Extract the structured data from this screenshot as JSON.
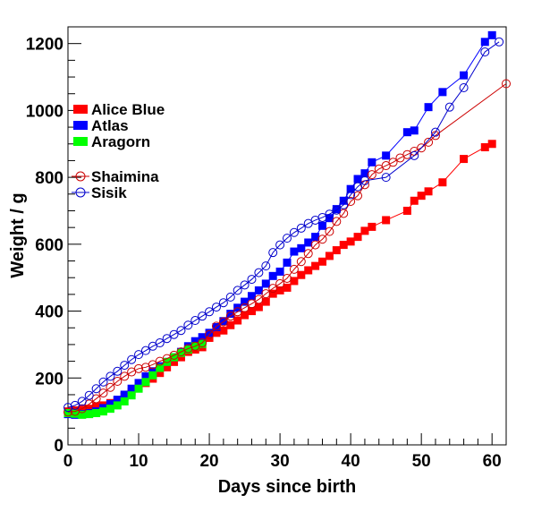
{
  "chart_data": {
    "type": "scatter",
    "xlabel": "Days since birth",
    "ylabel": "Weight / g",
    "xlim": [
      0,
      62
    ],
    "ylim": [
      0,
      1250
    ],
    "xticks": [
      0,
      10,
      20,
      30,
      40,
      50,
      60
    ],
    "yticks": [
      0,
      200,
      400,
      600,
      800,
      1000,
      1200
    ],
    "grid": false,
    "legend_position": "left",
    "series": [
      {
        "name": "Alice Blue",
        "color": "#ff0000",
        "marker": "filled-square",
        "x": [
          0,
          1,
          2,
          3,
          4,
          5,
          6,
          7,
          8,
          9,
          10,
          11,
          12,
          13,
          14,
          15,
          16,
          17,
          18,
          19,
          20,
          21,
          22,
          23,
          24,
          25,
          26,
          27,
          28,
          29,
          30,
          31,
          32,
          33,
          34,
          35,
          36,
          37,
          38,
          39,
          40,
          41,
          42,
          43,
          45,
          48,
          49,
          50,
          51,
          53,
          56,
          59,
          60
        ],
        "y": [
          100,
          103,
          105,
          108,
          115,
          118,
          125,
          132,
          145,
          158,
          172,
          185,
          198,
          215,
          232,
          248,
          262,
          278,
          285,
          292,
          320,
          335,
          342,
          358,
          372,
          388,
          400,
          412,
          428,
          452,
          462,
          470,
          490,
          508,
          522,
          535,
          548,
          565,
          582,
          598,
          608,
          622,
          640,
          652,
          672,
          700,
          730,
          745,
          758,
          785,
          855,
          890,
          900
        ]
      },
      {
        "name": "Atlas",
        "color": "#0000ff",
        "marker": "filled-square",
        "x": [
          0,
          1,
          2,
          3,
          4,
          5,
          6,
          7,
          8,
          9,
          10,
          11,
          12,
          13,
          14,
          15,
          16,
          17,
          18,
          19,
          20,
          21,
          22,
          23,
          24,
          25,
          26,
          27,
          28,
          29,
          30,
          31,
          32,
          33,
          34,
          35,
          36,
          37,
          38,
          39,
          40,
          41,
          42,
          43,
          45,
          48,
          49,
          51,
          53,
          56,
          59,
          60
        ],
        "y": [
          92,
          90,
          92,
          95,
          100,
          110,
          122,
          135,
          150,
          168,
          185,
          205,
          220,
          235,
          248,
          262,
          278,
          295,
          310,
          322,
          335,
          352,
          370,
          392,
          410,
          428,
          445,
          462,
          482,
          505,
          518,
          545,
          578,
          588,
          605,
          622,
          655,
          678,
          705,
          730,
          765,
          795,
          812,
          845,
          865,
          935,
          940,
          1010,
          1055,
          1105,
          1205,
          1225
        ]
      },
      {
        "name": "Aragorn",
        "color": "#00ff00",
        "marker": "filled-square",
        "x": [
          0,
          1,
          2,
          3,
          4,
          5,
          6,
          7,
          8,
          9,
          10,
          11,
          12,
          13,
          14,
          15,
          16,
          17,
          18,
          19
        ],
        "y": [
          95,
          93,
          90,
          92,
          95,
          100,
          108,
          118,
          130,
          148,
          168,
          188,
          208,
          230,
          248,
          262,
          275,
          285,
          295,
          302
        ]
      },
      {
        "name": "Shaimina",
        "color": "#cc0000",
        "marker": "open-circle",
        "x": [
          0,
          1,
          2,
          3,
          4,
          5,
          6,
          7,
          8,
          9,
          10,
          11,
          12,
          13,
          14,
          15,
          16,
          17,
          18,
          19,
          20,
          21,
          22,
          23,
          24,
          25,
          26,
          27,
          28,
          29,
          30,
          31,
          32,
          33,
          34,
          35,
          36,
          37,
          38,
          39,
          40,
          41,
          42,
          43,
          44,
          45,
          46,
          47,
          48,
          49,
          50,
          51,
          52,
          62
        ],
        "y": [
          98,
          100,
          108,
          122,
          138,
          155,
          172,
          190,
          205,
          218,
          228,
          232,
          240,
          250,
          258,
          268,
          278,
          288,
          295,
          305,
          330,
          355,
          368,
          385,
          398,
          410,
          422,
          435,
          452,
          468,
          482,
          498,
          525,
          548,
          572,
          598,
          615,
          638,
          668,
          692,
          728,
          745,
          778,
          808,
          825,
          835,
          845,
          858,
          868,
          878,
          888,
          905,
          925,
          1080
        ]
      },
      {
        "name": "Sisik",
        "color": "#0000cc",
        "marker": "open-circle",
        "x": [
          0,
          1,
          2,
          3,
          4,
          5,
          6,
          7,
          8,
          9,
          10,
          11,
          12,
          13,
          14,
          15,
          16,
          17,
          18,
          19,
          20,
          21,
          22,
          23,
          24,
          25,
          26,
          27,
          28,
          29,
          30,
          31,
          32,
          33,
          34,
          35,
          36,
          37,
          38,
          39,
          40,
          41,
          42,
          45,
          49,
          52,
          54,
          56,
          59,
          61
        ],
        "y": [
          112,
          118,
          130,
          148,
          168,
          188,
          205,
          220,
          238,
          255,
          270,
          282,
          295,
          305,
          318,
          330,
          342,
          358,
          372,
          385,
          398,
          412,
          425,
          442,
          462,
          478,
          495,
          515,
          535,
          575,
          598,
          618,
          635,
          648,
          662,
          672,
          680,
          690,
          702,
          718,
          748,
          772,
          790,
          800,
          865,
          935,
          1010,
          1068,
          1175,
          1205
        ]
      }
    ]
  }
}
